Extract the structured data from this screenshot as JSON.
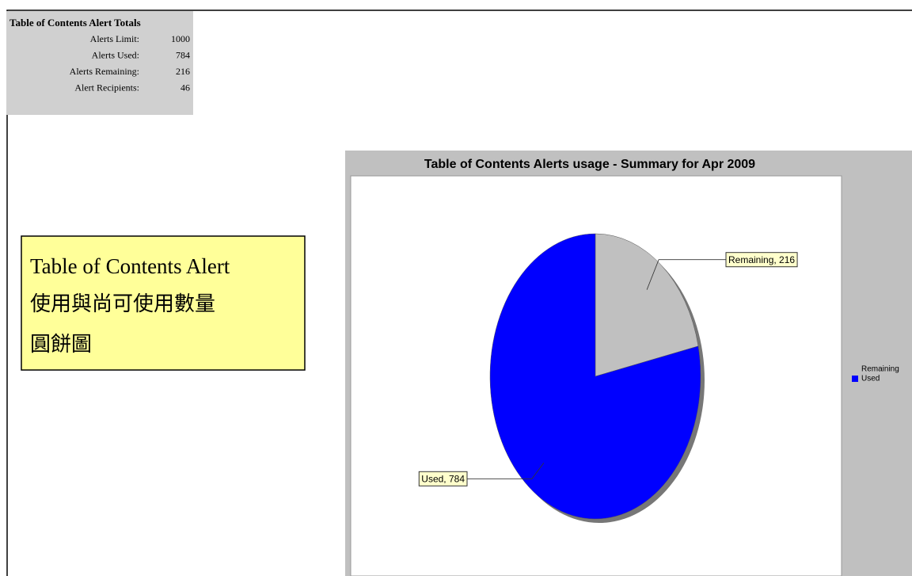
{
  "table": {
    "title": "Table of Contents Alert Totals",
    "rows": [
      [
        "Alerts Limit:",
        1000
      ],
      [
        "Alerts Used:",
        784
      ],
      [
        "Alerts Remaining:",
        216
      ],
      [
        "Alert Recipients:",
        46
      ]
    ]
  },
  "note": {
    "lines": [
      "Table of Contents Alert",
      "使用與尚可使用數量",
      "圓餅圖"
    ]
  },
  "chart_data": {
    "type": "pie",
    "title": "Table of Contents Alerts usage - Summary for Apr 2009",
    "categories": [
      "Remaining",
      "Used"
    ],
    "values": [
      216,
      784
    ],
    "value_labels": [
      "Remaining, 216",
      "Used, 784"
    ],
    "colors": [
      "#c0c0c0",
      "#0000ff"
    ],
    "legend": "right"
  }
}
